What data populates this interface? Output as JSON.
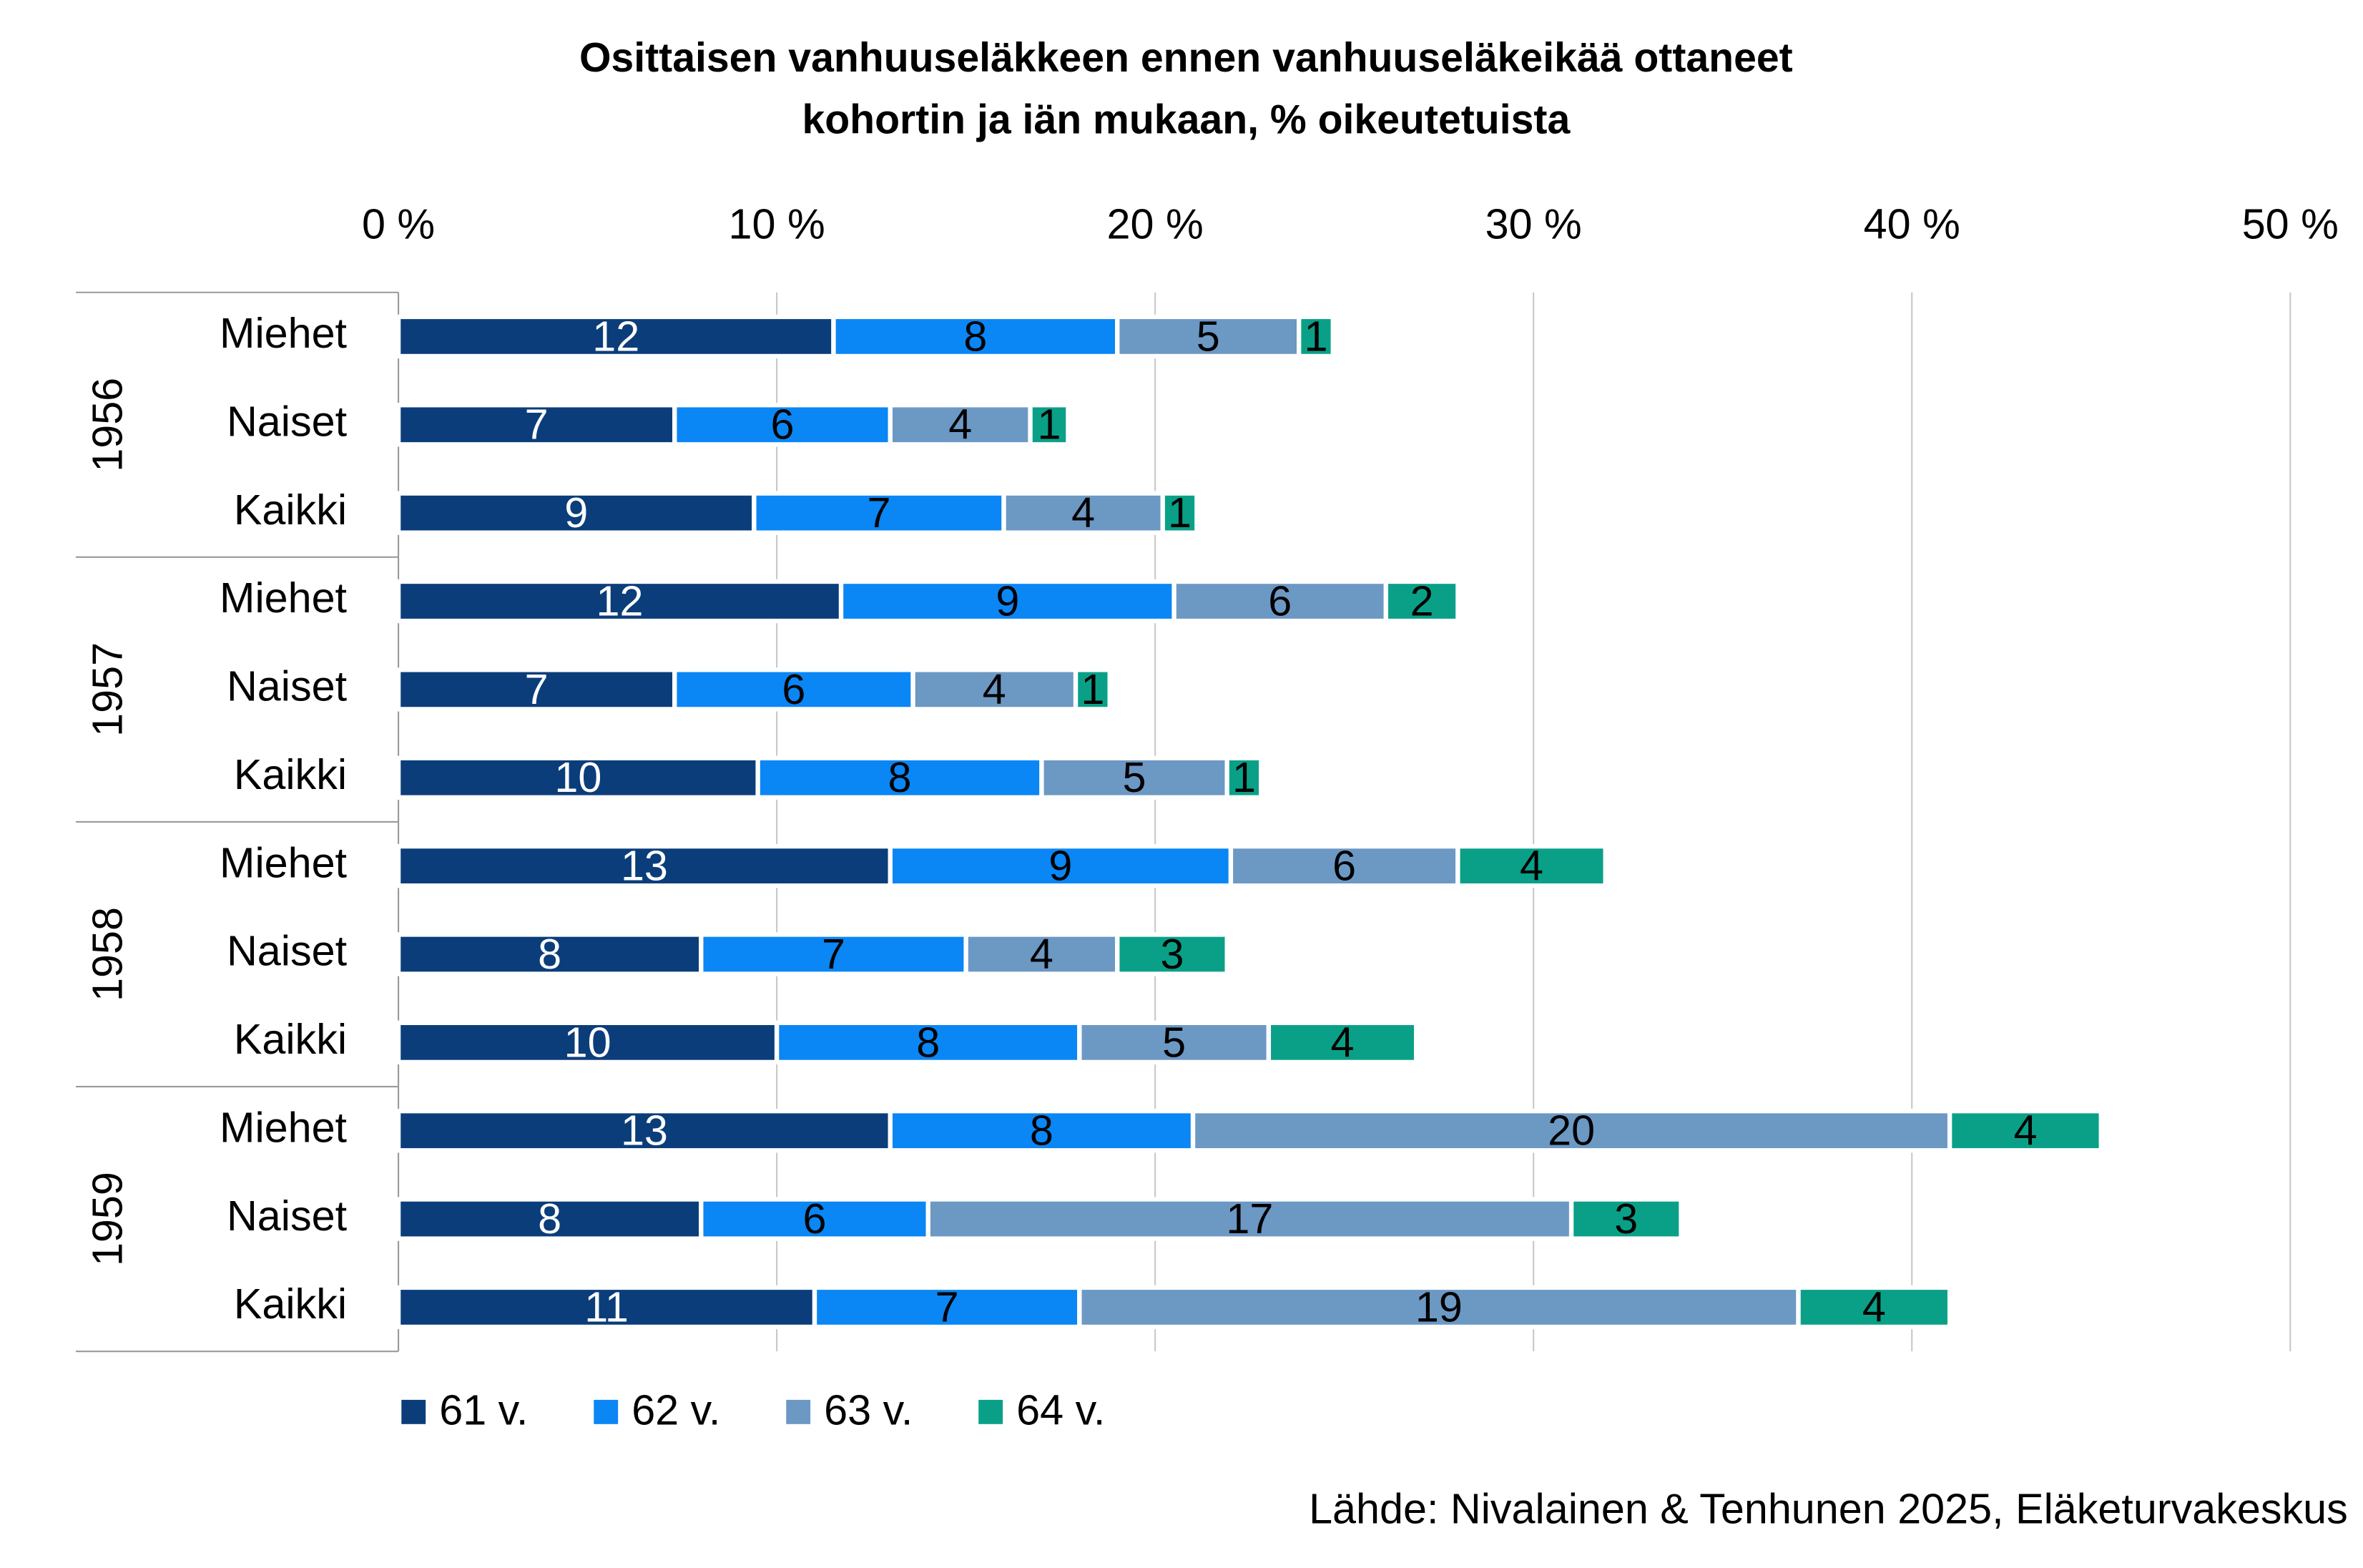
{
  "chart_data": {
    "type": "stacked-bar",
    "title": [
      "Osittaisen vanhuuseläkkeen ennen vanhuuseläkeikää ottaneet",
      "kohortin ja iän mukaan, % oikeutetuista"
    ],
    "groups": [
      "1956",
      "1957",
      "1958",
      "1959"
    ],
    "categories": [
      "Miehet",
      "Naiset",
      "Kaikki",
      "Miehet",
      "Naiset",
      "Kaikki",
      "Miehet",
      "Naiset",
      "Kaikki",
      "Miehet",
      "Naiset",
      "Kaikki"
    ],
    "series": [
      {
        "name": "61 v.",
        "color": "#0b3d7a",
        "label_color": "#ffffff",
        "values": [
          11.5,
          7.3,
          9.4,
          11.7,
          7.3,
          9.5,
          13.0,
          8.0,
          10.0,
          13.0,
          8.0,
          11.0
        ],
        "value_labels": [
          "12",
          "7",
          "9",
          "12",
          "7",
          "10",
          "13",
          "8",
          "10",
          "13",
          "8",
          "11"
        ]
      },
      {
        "name": "62 v.",
        "color": "#0a86f5",
        "label_color": "#000000",
        "values": [
          7.5,
          5.7,
          6.6,
          8.8,
          6.3,
          7.5,
          9.0,
          7.0,
          8.0,
          8.0,
          6.0,
          7.0
        ],
        "value_labels": [
          "8",
          "6",
          "7",
          "9",
          "6",
          "8",
          "9",
          "7",
          "8",
          "8",
          "6",
          "7"
        ]
      },
      {
        "name": "63 v.",
        "color": "#6c98c4",
        "label_color": "#000000",
        "values": [
          4.8,
          3.7,
          4.2,
          5.6,
          4.3,
          4.9,
          6.0,
          4.0,
          5.0,
          20.0,
          17.0,
          19.0
        ],
        "value_labels": [
          "5",
          "4",
          "4",
          "6",
          "4",
          "5",
          "6",
          "4",
          "5",
          "20",
          "17",
          "19"
        ]
      },
      {
        "name": "64 v.",
        "color": "#0aa088",
        "label_color": "#000000",
        "values": [
          0.9,
          1.0,
          0.9,
          1.9,
          0.9,
          0.9,
          3.9,
          2.9,
          3.9,
          4.0,
          2.9,
          4.0
        ],
        "value_labels": [
          "1",
          "1",
          "1",
          "2",
          "1",
          "1",
          "4",
          "3",
          "4",
          "4",
          "3",
          "4"
        ]
      }
    ],
    "xlim": [
      0,
      50
    ],
    "xticks": [
      {
        "value": 0,
        "label": "0 %"
      },
      {
        "value": 10,
        "label": "10 %"
      },
      {
        "value": 20,
        "label": "20 %"
      },
      {
        "value": 30,
        "label": "30 %"
      },
      {
        "value": 40,
        "label": "40 %"
      },
      {
        "value": 50,
        "label": "50 %"
      }
    ],
    "grid": true,
    "legend": "bottom",
    "source": "Lähde: Nivalainen & Tenhunen 2025, Eläketurvakeskus"
  }
}
